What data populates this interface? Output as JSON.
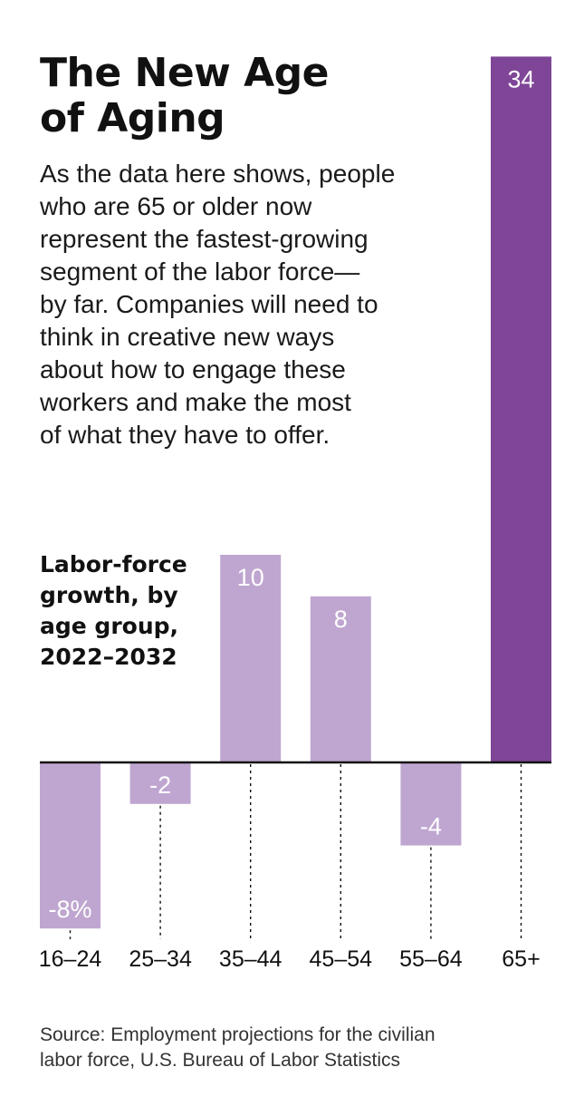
{
  "title": [
    "The New Age",
    "of Aging"
  ],
  "intro": [
    "As the data here shows, people",
    "who are 65 or older now",
    "represent the fastest-growing",
    "segment of the labor force—",
    "by far. Companies will need to",
    "think in creative new ways",
    "about how to engage these",
    "workers and make the most",
    "of what they have to offer."
  ],
  "chart_label": [
    "Labor-force",
    "growth, by",
    "age group,",
    "2022–2032"
  ],
  "source": [
    "Source: Employment projections for the civilian",
    "labor force, U.S. Bureau of Labor Statistics"
  ],
  "colors": {
    "bar_light": "#bfa6d0",
    "bar_highlight": "#7f4597",
    "axis": "#111111",
    "text": "#111111"
  },
  "chart_data": {
    "type": "bar",
    "title": "Labor-force growth, by age group, 2022–2032",
    "categories": [
      "16–24",
      "25–34",
      "35–44",
      "45–54",
      "55–64",
      "65+"
    ],
    "values": [
      -8,
      -2,
      10,
      8,
      -4,
      34
    ],
    "value_labels": [
      "-8%",
      "-2",
      "10",
      "8",
      "-4",
      "34"
    ],
    "highlight_index": 5,
    "unit": "%",
    "xlabel": "",
    "ylabel": ""
  }
}
